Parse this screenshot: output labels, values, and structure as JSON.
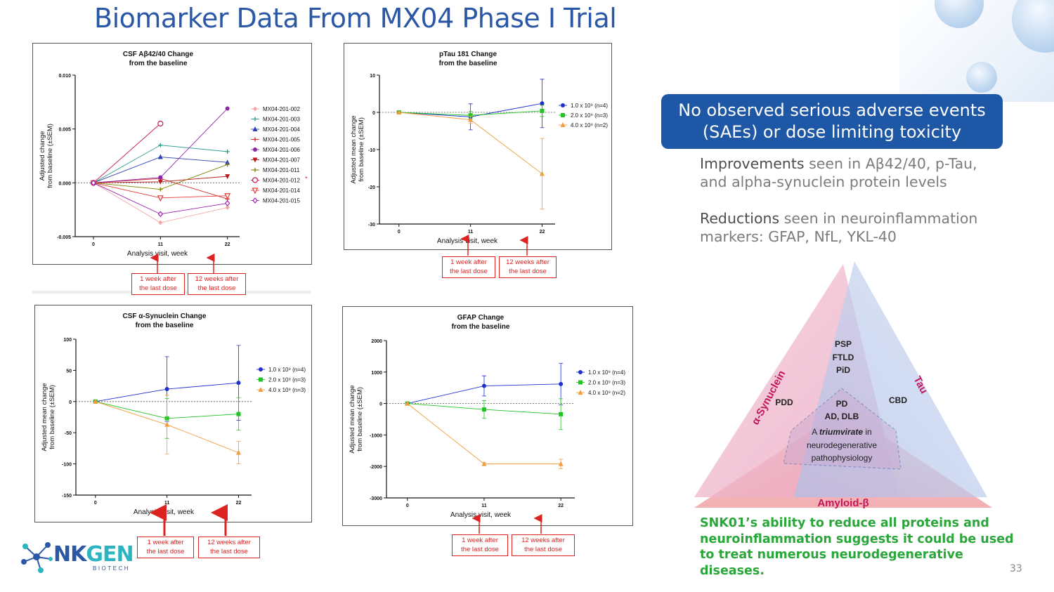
{
  "slide_title": "Biomarker Data From MX04 Phase I Trial",
  "page_number": "33",
  "logo": {
    "nk": "NK",
    "gen": "GEN",
    "sub": "BIOTECH"
  },
  "banner": {
    "line1": "No observed serious adverse events",
    "line2": "(SAEs) or dose limiting toxicity"
  },
  "points": [
    {
      "bold": "Improvements",
      "rest1": " seen in Aβ42/40, p-Tau,",
      "line2": "and alpha-synuclein protein levels"
    },
    {
      "bold": "Reductions",
      "rest1": " seen in neuroinflammation",
      "line2": "markers: GFAP, NfL, YKL-40"
    }
  ],
  "conclusion": {
    "line1": "SNK01’s ability to reduce all proteins and",
    "line2": "neuroinflammation suggests it could be used",
    "line3": "to treat numerous neurodegenerative diseases."
  },
  "triangle": {
    "labels": {
      "synuclein": "α-Synuclein",
      "tau": "Tau",
      "amyloid": "Amyloid-β",
      "psp": "PSP",
      "ftld": "FTLD",
      "pid": "PiD",
      "pdd": "PDD",
      "cbd": "CBD",
      "pd": "PD",
      "addlb": "AD, DLB",
      "center1a": "A ",
      "center1b": "triumvirate",
      "center1c": " in",
      "center2": "neurodegenerative",
      "center3": "pathophysiology"
    },
    "colors": {
      "synuclein": "#e8a0b8",
      "tau": "#a9bde6",
      "amyloid": "#f2a3a8"
    }
  },
  "annotations": {
    "one_week": {
      "line1": "1 week after",
      "line2": "the last dose"
    },
    "twelve_weeks": {
      "line1": "12 weeks after",
      "line2": "the last dose"
    }
  },
  "chart_data": [
    {
      "id": "abeta",
      "type": "line",
      "title": "CSF Aβ42/40 Change",
      "subtitle": "from the baseline",
      "xlabel": "Analysis visit, week",
      "ylabel": "Adjusted change",
      "ylabel2": "from baseline (±SEM)",
      "x": [
        0,
        11,
        22
      ],
      "xticks": [
        "0",
        "11",
        "22"
      ],
      "ylim": [
        -0.005,
        0.01
      ],
      "yticks": [
        -0.005,
        0.0,
        0.005,
        0.01
      ],
      "ytick_labels": [
        "-0.005",
        "0.000",
        "0.005",
        "0.010"
      ],
      "legend_position": "right",
      "series": [
        {
          "name": "MX04-201-002",
          "color": "#f4a6a6",
          "marker": "diamond",
          "values": [
            0,
            -0.0037,
            -0.0023
          ]
        },
        {
          "name": "MX04-201-003",
          "color": "#2a9d8f",
          "marker": "plus",
          "values": [
            0,
            0.0035,
            0.0029
          ]
        },
        {
          "name": "MX04-201-004",
          "color": "#2b3fb6",
          "marker": "triangle",
          "values": [
            0,
            0.0024,
            0.0019
          ]
        },
        {
          "name": "MX04-201-005",
          "color": "#d62828",
          "marker": "plus",
          "values": [
            0,
            0.0004,
            -0.0015
          ]
        },
        {
          "name": "MX04-201-006",
          "color": "#8e24aa",
          "marker": "circle",
          "values": [
            0,
            0.0005,
            0.0069
          ]
        },
        {
          "name": "MX04-201-007",
          "color": "#b71c1c",
          "marker": "triangle-down",
          "values": [
            0,
            0.0001,
            0.0006
          ]
        },
        {
          "name": "MX04-201-011",
          "color": "#808000",
          "marker": "plus",
          "values": [
            0,
            -0.0006,
            0.0017
          ]
        },
        {
          "name": "MX04-201-012",
          "color": "#c2185b",
          "marker": "circle-open",
          "values": [
            0,
            0.0055,
            null
          ]
        },
        {
          "name": "MX04-201-014",
          "color": "#e53935",
          "marker": "triangle-down-open",
          "values": [
            0,
            -0.0014,
            -0.0012
          ]
        },
        {
          "name": "MX04-201-015",
          "color": "#9c27b0",
          "marker": "diamond-open",
          "values": [
            0,
            -0.0029,
            -0.0019
          ]
        }
      ],
      "legend_asterisk": "*"
    },
    {
      "id": "ptau",
      "type": "line",
      "title": "pTau 181 Change",
      "subtitle": "from the baseline",
      "xlabel": "Analysis visit, week",
      "ylabel": "Adjusted mean change",
      "ylabel2": "from baseline (±SEM)",
      "x": [
        0,
        11,
        22
      ],
      "xticks": [
        "0",
        "11",
        "22"
      ],
      "ylim": [
        -30,
        10
      ],
      "yticks": [
        -30,
        -20,
        -10,
        0,
        10
      ],
      "ytick_labels": [
        "-30",
        "-20",
        "-10",
        "0",
        "10"
      ],
      "legend_position": "right",
      "series": [
        {
          "name": "1.0 x 10⁹ (n=4)",
          "color": "#1f2fd1",
          "marker": "circle",
          "values": [
            0,
            -1.2,
            2.4
          ],
          "err": [
            0,
            3.5,
            6.5
          ]
        },
        {
          "name": "2.0 x 10⁹ (n=3)",
          "color": "#22c422",
          "marker": "square",
          "values": [
            0,
            -0.8,
            0.4
          ],
          "err": [
            0,
            1.0,
            1.5
          ]
        },
        {
          "name": "4.0 x 10⁹ (n=2)",
          "color": "#f39c3c",
          "marker": "triangle",
          "values": [
            0,
            -2.0,
            -16.5
          ],
          "err": [
            0,
            1.0,
            9.5
          ]
        }
      ]
    },
    {
      "id": "syn",
      "type": "line",
      "title": "CSF α-Synuclein Change",
      "subtitle": "from the baseline",
      "xlabel": "Analysis visit, week",
      "ylabel": "Adjusted mean change",
      "ylabel2": "from baseline (±SEM)",
      "x": [
        0,
        11,
        22
      ],
      "xticks": [
        "0",
        "11",
        "22"
      ],
      "ylim": [
        -150,
        100
      ],
      "yticks": [
        -150,
        -100,
        -50,
        0,
        50,
        100
      ],
      "ytick_labels": [
        "-150",
        "-100",
        "-50",
        "0",
        "50",
        "100"
      ],
      "legend_position": "right",
      "series": [
        {
          "name": "1.0 x 10⁹ (n=4)",
          "color": "#1f2fd1",
          "marker": "circle",
          "values": [
            0,
            20,
            30
          ],
          "err": [
            0,
            52,
            60
          ]
        },
        {
          "name": "2.0 x 10⁹ (n=3)",
          "color": "#22c422",
          "marker": "square",
          "values": [
            0,
            -27,
            -20
          ],
          "err": [
            0,
            32,
            26
          ]
        },
        {
          "name": "4.0 x 10⁹ (n=3)",
          "color": "#f39c3c",
          "marker": "triangle",
          "values": [
            0,
            -37,
            -82
          ],
          "err": [
            0,
            47,
            18
          ]
        }
      ]
    },
    {
      "id": "gfap",
      "type": "line",
      "title": "GFAP Change",
      "subtitle": "from the baseline",
      "xlabel": "Analysis visit, week",
      "ylabel": "Adjusted mean change",
      "ylabel2": "from baseline (±SEM)",
      "x": [
        0,
        11,
        22
      ],
      "xticks": [
        "0",
        "11",
        "22"
      ],
      "ylim": [
        -3000,
        2000
      ],
      "yticks": [
        -3000,
        -2000,
        -1000,
        0,
        1000,
        2000
      ],
      "ytick_labels": [
        "-3000",
        "-2000",
        "-1000",
        "0",
        "1000",
        "2000"
      ],
      "legend_position": "right",
      "series": [
        {
          "name": "1.0 x 10⁹ (n=4)",
          "color": "#1f2fd1",
          "marker": "circle",
          "values": [
            0,
            560,
            620
          ],
          "err": [
            0,
            320,
            660
          ]
        },
        {
          "name": "2.0 x 10⁹ (n=3)",
          "color": "#22c422",
          "marker": "square",
          "values": [
            0,
            -190,
            -340
          ],
          "err": [
            0,
            280,
            490
          ]
        },
        {
          "name": "4.0 x 10⁹ (n=2)",
          "color": "#f39c3c",
          "marker": "triangle",
          "values": [
            0,
            -1920,
            -1920
          ],
          "err": [
            0,
            40,
            150
          ]
        }
      ]
    }
  ]
}
